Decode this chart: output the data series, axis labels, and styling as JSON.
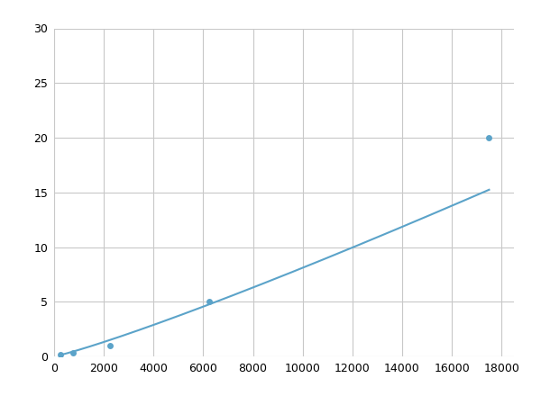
{
  "x_points": [
    250,
    750,
    2250,
    6250,
    17500
  ],
  "y_points": [
    0.2,
    0.3,
    1.0,
    5.0,
    20.0
  ],
  "line_color": "#5ba3c9",
  "marker_color": "#5ba3c9",
  "marker_size": 5,
  "xlim": [
    0,
    18500
  ],
  "ylim": [
    0,
    30
  ],
  "xticks": [
    0,
    2000,
    4000,
    6000,
    8000,
    10000,
    12000,
    14000,
    16000,
    18000
  ],
  "yticks": [
    0,
    5,
    10,
    15,
    20,
    25,
    30
  ],
  "grid_color": "#c8c8c8",
  "background_color": "#ffffff",
  "linewidth": 1.5,
  "figsize": [
    6.0,
    4.5
  ],
  "dpi": 100
}
